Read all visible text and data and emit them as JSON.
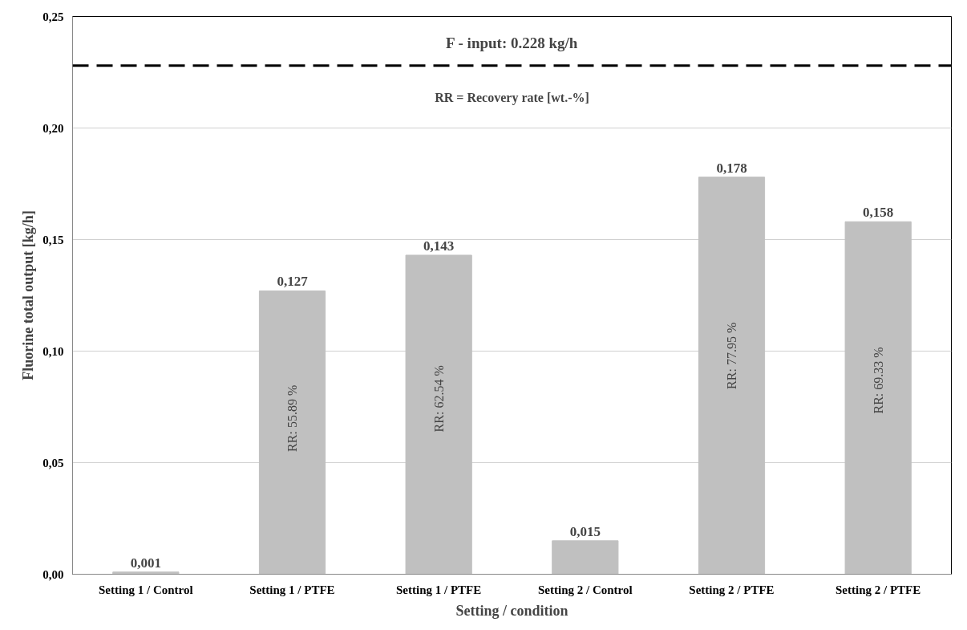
{
  "chart_data": {
    "type": "bar",
    "xlabel": "Setting / condition",
    "ylabel": "Fluorine total output [kg/h]",
    "categories": [
      "Setting 1 / Control",
      "Setting 1 / PTFE",
      "Setting 1 / PTFE",
      "Setting 2 / Control",
      "Setting 2 / PTFE",
      "Setting 2 / PTFE"
    ],
    "values": [
      0.001,
      0.127,
      0.143,
      0.015,
      0.178,
      0.158
    ],
    "value_labels": [
      "0,001",
      "0,127",
      "0,143",
      "0,015",
      "0,178",
      "0,158"
    ],
    "color": "#c0c0c0",
    "ylim": [
      0,
      0.25
    ],
    "yticks": [
      {
        "value": 0,
        "label": "0,00"
      },
      {
        "value": 0.05,
        "label": "0,05"
      },
      {
        "value": 0.1,
        "label": "0,10"
      },
      {
        "value": 0.15,
        "label": "0,15"
      },
      {
        "value": 0.2,
        "label": "0,20"
      },
      {
        "value": 0.25,
        "label": "0,25"
      }
    ],
    "grid": "y",
    "ref_lines": [
      {
        "axis": "y",
        "value": 0.228,
        "label": "F - input: 0.228 kg/h",
        "color": "#000000",
        "line_style": "dashed"
      }
    ],
    "annotations": [
      "RR = Recovery rate [wt.-%]",
      "RR: 55.89 %",
      "RR: 62.54 %",
      "RR: 77.95 %",
      "RR: 69.33 %"
    ]
  }
}
